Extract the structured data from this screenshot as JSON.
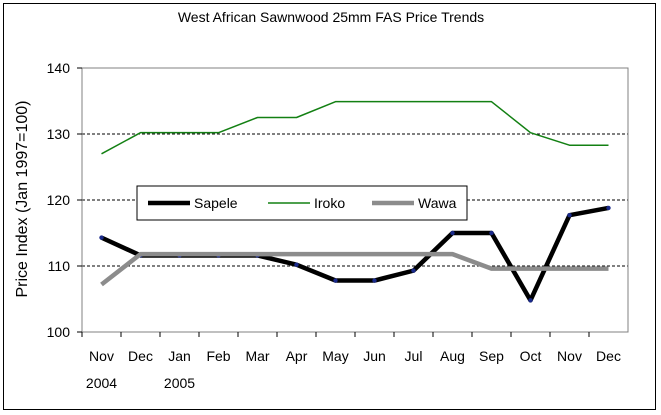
{
  "chart_data": {
    "type": "line",
    "title": "West  African Sawnwood 25mm  FAS Price Trends",
    "xlabel": "",
    "ylabel": "Price Index (Jan 1997=100)",
    "ylim": [
      100,
      140
    ],
    "yticks": [
      100,
      110,
      120,
      130,
      140
    ],
    "gridlines_at": [
      110,
      120,
      130
    ],
    "categories": [
      "Nov",
      "Dec",
      "Jan",
      "Feb",
      "Mar",
      "Apr",
      "May",
      "Jun",
      "Jul",
      "Aug",
      "Sep",
      "Oct",
      "Nov",
      "Dec"
    ],
    "year_labels": [
      {
        "label": "2004",
        "category_index": 0
      },
      {
        "label": "2005",
        "category_index": 2
      }
    ],
    "legend_placement": "center-left",
    "series": [
      {
        "name": "Sapele",
        "color": "#000000",
        "values": [
          114.3,
          111.6,
          111.6,
          111.6,
          111.6,
          110.2,
          107.8,
          107.8,
          109.3,
          115,
          115,
          104.8,
          117.7,
          118.8
        ]
      },
      {
        "name": "Iroko",
        "color": "#138013",
        "values": [
          127,
          130.2,
          130.2,
          130.2,
          132.5,
          132.5,
          134.9,
          134.9,
          134.9,
          134.9,
          134.9,
          130.2,
          128.3,
          128.3
        ]
      },
      {
        "name": "Wawa",
        "color": "#8c8c8c",
        "values": [
          107.2,
          111.8,
          111.8,
          111.8,
          111.8,
          111.8,
          111.8,
          111.8,
          111.8,
          111.8,
          109.6,
          109.6,
          109.6,
          109.6
        ]
      }
    ]
  }
}
